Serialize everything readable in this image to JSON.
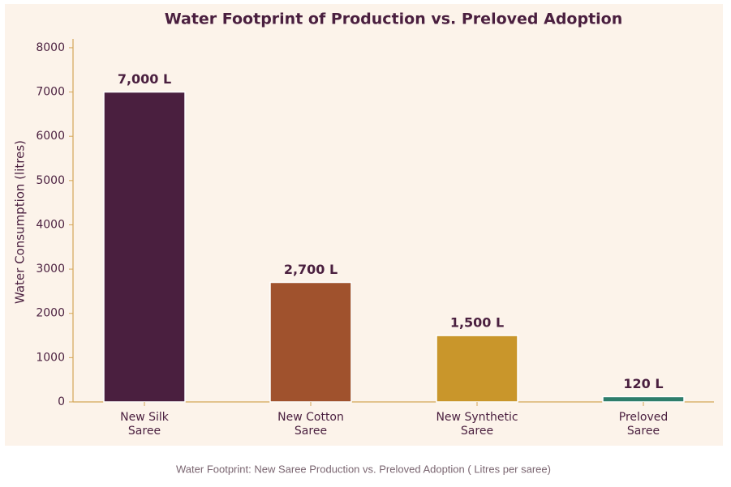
{
  "chart_data": {
    "type": "bar",
    "title": "Water Footprint of Production vs. Preloved Adoption",
    "y_label": "Water Consumption (litres)",
    "categories": [
      "New Silk\nSaree",
      "New Cotton\nSaree",
      "New Synthetic\nSaree",
      "Preloved\nSaree"
    ],
    "values": [
      7000,
      2700,
      1500,
      120
    ],
    "value_labels": [
      "7,000 L",
      "2,700 L",
      "1,500 L",
      "120 L"
    ],
    "colors": [
      "#4a1f3f",
      "#a0522d",
      "#c9962b",
      "#2e7d6b"
    ],
    "ylim": [
      0,
      8200
    ],
    "yticks": [
      0,
      1000,
      2000,
      3000,
      4000,
      5000,
      6000,
      7000,
      8000
    ],
    "grid": false
  },
  "caption": "Water Footprint: New Saree Production vs. Preloved Adoption ( Litres per saree)"
}
